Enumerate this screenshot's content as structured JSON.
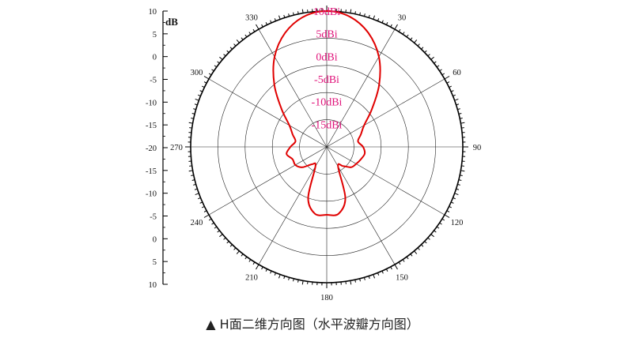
{
  "caption": "▲ H面二维方向图（水平波瓣方向图）",
  "chart_data": {
    "type": "polar-line",
    "unit_label": "dB",
    "radial_axis": {
      "min": -20,
      "max": 10,
      "ring_values": [
        10,
        5,
        0,
        -5,
        -10,
        -15
      ],
      "ring_labels": [
        "10dBi",
        "5dBi",
        "0dBi",
        "-5dBi",
        "-10dBi",
        "-15dBi"
      ],
      "side_tick_labels": [
        "10",
        "5",
        "0",
        "-5",
        "-10",
        "-15",
        "-20",
        "-15",
        "-10",
        "-5",
        "0",
        "5",
        "10"
      ]
    },
    "angular_axis": {
      "direction": "clockwise",
      "zero_at": "top",
      "tick_labels": [
        "30",
        "60",
        "90",
        "120",
        "150",
        "180",
        "210",
        "240",
        "270",
        "300",
        "330"
      ],
      "tick_angles": [
        30,
        60,
        90,
        120,
        150,
        180,
        210,
        240,
        270,
        300,
        330
      ]
    },
    "series": [
      {
        "color": "#e00000",
        "theta": [
          0,
          10,
          20,
          30,
          40,
          50,
          60,
          70,
          80,
          90,
          100,
          110,
          120,
          130,
          140,
          150,
          160,
          170,
          180,
          190,
          200,
          210,
          220,
          230,
          240,
          250,
          260,
          270,
          280,
          290,
          300,
          310,
          320,
          330,
          340,
          350
        ],
        "r": [
          10,
          9.2,
          6.8,
          3,
          -2,
          -7,
          -10.5,
          -12,
          -13,
          -12,
          -11.5,
          -12,
          -12.5,
          -13,
          -14.5,
          -15,
          -8,
          -5,
          -5,
          -5,
          -8,
          -15,
          -15,
          -13,
          -12,
          -12,
          -11,
          -12,
          -13,
          -12,
          -10.5,
          -7,
          -2,
          3,
          6.8,
          9.2
        ]
      }
    ],
    "grid": true,
    "ring_label_color": "#e0137a"
  }
}
